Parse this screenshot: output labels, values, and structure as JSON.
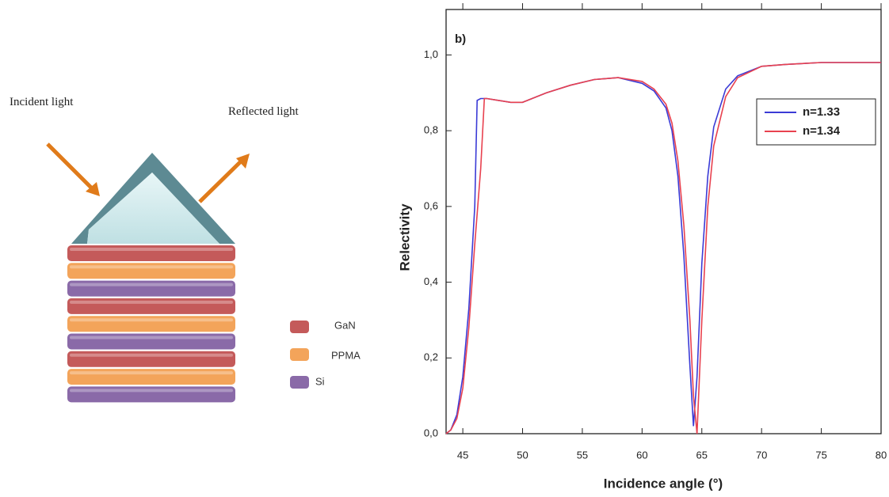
{
  "diagram": {
    "incident": "Incident light",
    "reflected": "Reflected light",
    "legend": [
      "GaN",
      "PPMA",
      "Si"
    ]
  },
  "chart_data": {
    "type": "line",
    "annotation": "b)",
    "xlabel": "Incidence angle (°)",
    "ylabel": "Relectivity",
    "xlim": [
      43.6,
      80
    ],
    "ylim": [
      0,
      1.12
    ],
    "xticks": [
      45,
      50,
      55,
      60,
      65,
      70,
      75,
      80
    ],
    "yticks": [
      {
        "value": 0,
        "label": "0,0"
      },
      {
        "value": 0.2,
        "label": "0,2"
      },
      {
        "value": 0.4,
        "label": "0,4"
      },
      {
        "value": 0.6,
        "label": "0,6"
      },
      {
        "value": 0.8,
        "label": "0,8"
      },
      {
        "value": 1.0,
        "label": "1,0"
      }
    ],
    "legend": "upper right",
    "x": [
      43.6,
      44,
      44.5,
      45,
      45.5,
      46,
      46.2,
      46.5,
      46.8,
      47,
      48,
      49,
      50,
      52,
      54,
      56,
      58,
      60,
      61,
      62,
      62.5,
      63,
      63.5,
      64,
      64.3,
      64.6,
      65,
      65.5,
      66,
      67,
      68,
      70,
      72,
      75,
      80
    ],
    "series": [
      {
        "name": "n=1.33",
        "color": "#3b3bd6",
        "values": [
          0,
          0.01,
          0.05,
          0.15,
          0.33,
          0.6,
          0.88,
          0.885,
          0.885,
          0.885,
          0.88,
          0.875,
          0.875,
          0.9,
          0.92,
          0.935,
          0.94,
          0.925,
          0.905,
          0.86,
          0.8,
          0.68,
          0.47,
          0.18,
          0.02,
          0.15,
          0.45,
          0.68,
          0.81,
          0.91,
          0.945,
          0.97,
          0.975,
          0.98,
          0.98
        ]
      },
      {
        "name": "n=1.34",
        "color": "#e8414f",
        "values": [
          0,
          0.01,
          0.04,
          0.12,
          0.28,
          0.5,
          0.58,
          0.7,
          0.885,
          0.885,
          0.88,
          0.875,
          0.875,
          0.9,
          0.92,
          0.935,
          0.94,
          0.93,
          0.91,
          0.87,
          0.82,
          0.72,
          0.55,
          0.3,
          0.1,
          0,
          0.3,
          0.6,
          0.76,
          0.89,
          0.94,
          0.97,
          0.975,
          0.98,
          0.98
        ]
      }
    ]
  }
}
